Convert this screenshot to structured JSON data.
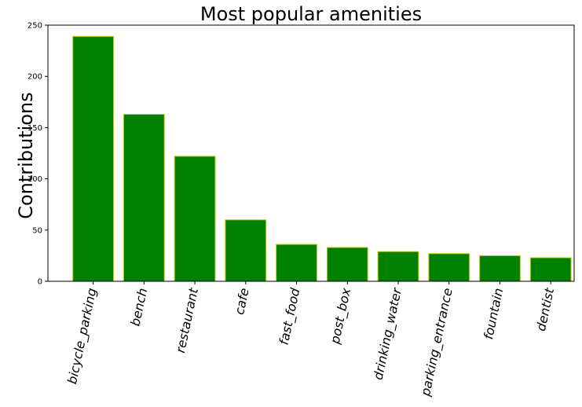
{
  "chart_data": {
    "type": "bar",
    "title": "Most popular amenities",
    "xlabel": "",
    "ylabel": "Contributions",
    "categories": [
      "bicycle_parking",
      "bench",
      "restaurant",
      "cafe",
      "fast_food",
      "post_box",
      "drinking_water",
      "parking_entrance",
      "fountain",
      "dentist"
    ],
    "values": [
      239,
      163,
      122,
      60,
      36,
      33,
      29,
      27,
      25,
      23
    ],
    "ylim": [
      0,
      250
    ],
    "yticks": [
      0,
      50,
      100,
      150,
      200,
      250
    ],
    "grid": false,
    "colors": {
      "bar_fill": "#008000",
      "bar_edge": "#cccc00",
      "axis": "#000000",
      "text": "#000000"
    }
  }
}
